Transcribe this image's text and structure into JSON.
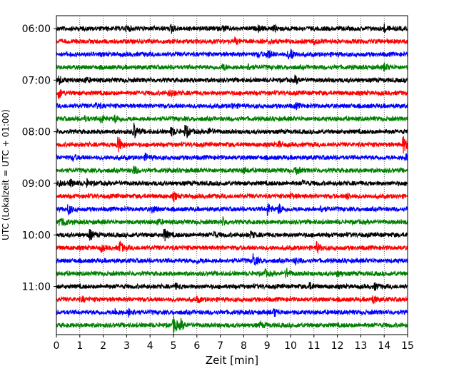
{
  "chart_data": {
    "type": "line",
    "title": "",
    "xlabel": "Zeit  [min]",
    "ylabel": "UTC (Lokalzeit = UTC + 01:00)",
    "xlim": [
      0,
      15
    ],
    "x_ticks": [
      "0",
      "1",
      "2",
      "3",
      "4",
      "5",
      "6",
      "7",
      "8",
      "9",
      "10",
      "11",
      "12",
      "13",
      "14",
      "15"
    ],
    "y_ticks": [
      "06:00",
      "07:00",
      "08:00",
      "09:00",
      "10:00",
      "11:00"
    ],
    "grid": "vertical-dotted",
    "trace_interval_min": 15,
    "trace_start": "06:00",
    "trace_colors": [
      "#000000",
      "#ff0000",
      "#0000ff",
      "#008000"
    ],
    "traces": [
      {
        "start": "06:00",
        "color": "#000000",
        "events": [
          [
            3.0,
            0.4
          ],
          [
            4.9,
            0.5
          ],
          [
            14.0,
            0.35
          ],
          [
            7.1,
            0.3
          ],
          [
            9.3,
            0.3
          ],
          [
            8.6,
            0.25
          ]
        ]
      },
      {
        "start": "06:15",
        "color": "#ff0000",
        "events": [
          [
            7.6,
            0.35
          ],
          [
            9.1,
            0.25
          ],
          [
            11.0,
            0.25
          ]
        ]
      },
      {
        "start": "06:30",
        "color": "#0000ff",
        "events": [
          [
            9.0,
            0.7
          ],
          [
            9.9,
            0.5
          ],
          [
            10.0,
            0.45
          ],
          [
            8.6,
            0.25
          ]
        ]
      },
      {
        "start": "06:45",
        "color": "#008000",
        "events": [
          [
            7.1,
            0.35
          ],
          [
            14.0,
            0.4
          ],
          [
            8.2,
            0.3
          ]
        ]
      },
      {
        "start": "07:00",
        "color": "#000000",
        "events": [
          [
            0.1,
            0.45
          ],
          [
            10.2,
            0.45
          ],
          [
            1.2,
            0.3
          ]
        ]
      },
      {
        "start": "07:15",
        "color": "#ff0000",
        "events": [
          [
            0.1,
            0.6
          ],
          [
            4.9,
            0.3
          ],
          [
            4.8,
            0.25
          ]
        ]
      },
      {
        "start": "07:30",
        "color": "#0000ff",
        "events": [
          [
            1.7,
            0.35
          ],
          [
            7.5,
            0.3
          ],
          [
            10.2,
            0.3
          ]
        ]
      },
      {
        "start": "07:45",
        "color": "#008000",
        "events": [
          [
            1.9,
            0.5
          ],
          [
            2.5,
            0.45
          ],
          [
            1.2,
            0.25
          ]
        ]
      },
      {
        "start": "08:00",
        "color": "#000000",
        "events": [
          [
            3.3,
            1.0
          ],
          [
            5.5,
            0.9
          ],
          [
            4.9,
            0.5
          ],
          [
            6.5,
            0.35
          ]
        ]
      },
      {
        "start": "08:15",
        "color": "#ff0000",
        "events": [
          [
            2.6,
            1.2
          ],
          [
            14.8,
            1.0
          ],
          [
            9.5,
            0.3
          ]
        ]
      },
      {
        "start": "08:30",
        "color": "#0000ff",
        "events": [
          [
            0.7,
            0.3
          ],
          [
            3.8,
            0.35
          ],
          [
            14.9,
            0.3
          ]
        ]
      },
      {
        "start": "08:45",
        "color": "#008000",
        "events": [
          [
            3.3,
            0.5
          ],
          [
            10.2,
            0.45
          ],
          [
            8.0,
            0.3
          ]
        ]
      },
      {
        "start": "09:00",
        "color": "#000000",
        "events": [
          [
            0.1,
            0.3
          ],
          [
            0.6,
            0.4
          ],
          [
            1.3,
            0.3
          ],
          [
            10.5,
            0.25
          ]
        ]
      },
      {
        "start": "09:15",
        "color": "#ff0000",
        "events": [
          [
            5.0,
            0.45
          ],
          [
            10.0,
            0.3
          ],
          [
            12.4,
            0.35
          ]
        ]
      },
      {
        "start": "09:30",
        "color": "#0000ff",
        "events": [
          [
            0.5,
            0.6
          ],
          [
            4.1,
            0.4
          ],
          [
            9.0,
            0.8
          ],
          [
            9.5,
            0.6
          ],
          [
            11.3,
            0.35
          ]
        ]
      },
      {
        "start": "09:45",
        "color": "#008000",
        "events": [
          [
            0.1,
            0.5
          ],
          [
            0.3,
            0.4
          ],
          [
            7.1,
            0.45
          ],
          [
            4.3,
            0.3
          ]
        ]
      },
      {
        "start": "10:00",
        "color": "#000000",
        "events": [
          [
            1.4,
            0.7
          ],
          [
            4.6,
            0.8
          ],
          [
            6.7,
            0.4
          ],
          [
            8.3,
            0.4
          ]
        ]
      },
      {
        "start": "10:15",
        "color": "#ff0000",
        "events": [
          [
            2.7,
            0.8
          ],
          [
            11.1,
            0.6
          ],
          [
            1.9,
            0.3
          ]
        ]
      },
      {
        "start": "10:30",
        "color": "#0000ff",
        "events": [
          [
            8.4,
            0.8
          ],
          [
            10.2,
            0.35
          ],
          [
            6.0,
            0.25
          ]
        ]
      },
      {
        "start": "10:45",
        "color": "#008000",
        "events": [
          [
            9.8,
            0.55
          ],
          [
            8.9,
            0.35
          ],
          [
            12.0,
            0.3
          ]
        ]
      },
      {
        "start": "11:00",
        "color": "#000000",
        "events": [
          [
            10.8,
            0.35
          ],
          [
            13.6,
            0.35
          ],
          [
            5.1,
            0.25
          ]
        ]
      },
      {
        "start": "11:15",
        "color": "#ff0000",
        "events": [
          [
            13.5,
            0.5
          ],
          [
            6.0,
            0.3
          ],
          [
            1.1,
            0.25
          ]
        ]
      },
      {
        "start": "11:30",
        "color": "#0000ff",
        "events": [
          [
            3.1,
            0.55
          ],
          [
            9.3,
            0.45
          ],
          [
            2.5,
            0.3
          ]
        ]
      },
      {
        "start": "11:45",
        "color": "#008000",
        "events": [
          [
            5.0,
            1.1
          ],
          [
            5.3,
            0.6
          ],
          [
            8.7,
            0.3
          ]
        ]
      }
    ]
  }
}
